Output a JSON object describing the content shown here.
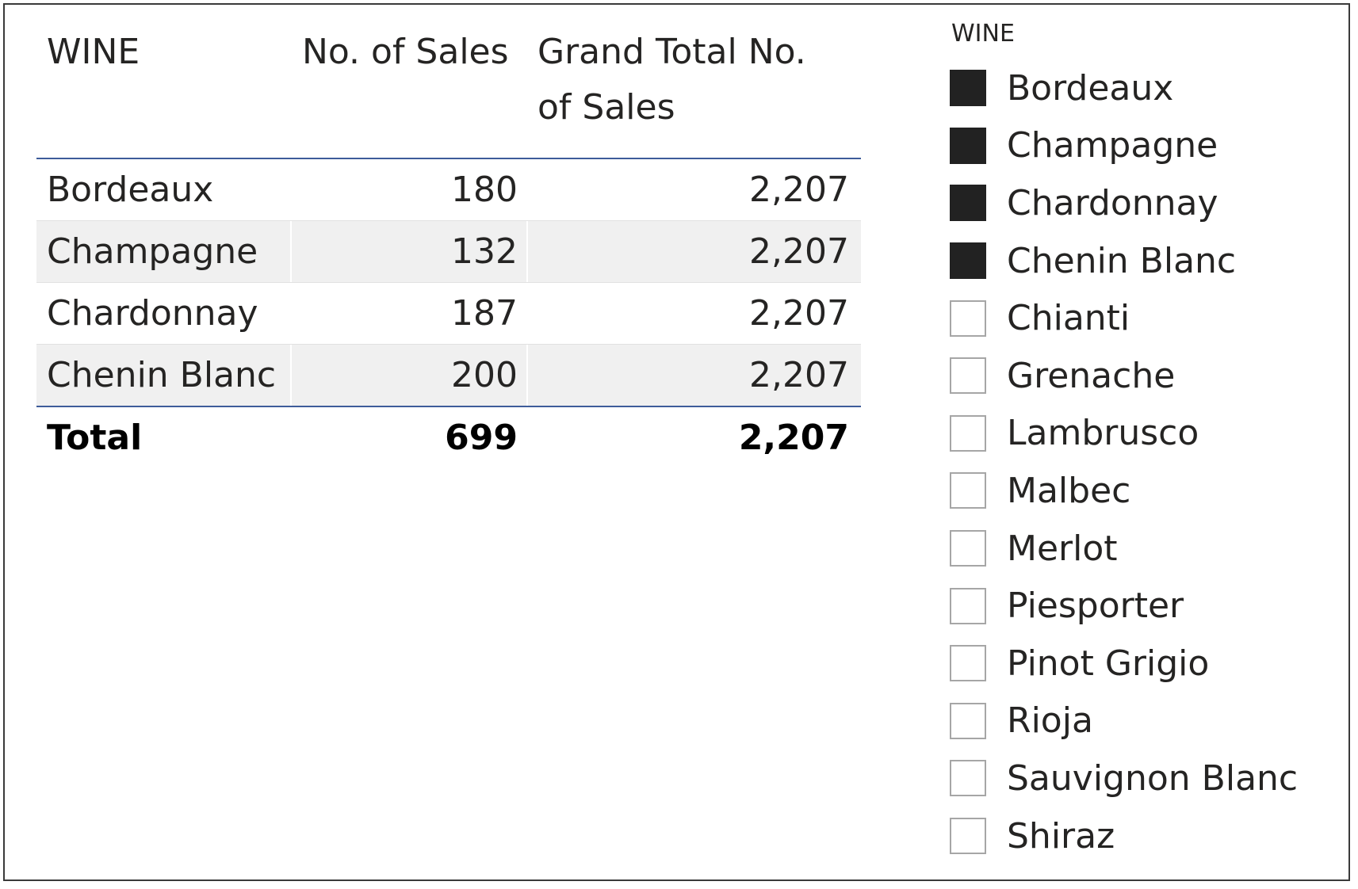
{
  "table": {
    "headers": {
      "wine": "WINE",
      "sales": "No. of Sales",
      "grand_line1": "Grand Total No.",
      "grand_line2": "of Sales"
    },
    "rows": [
      {
        "wine": "Bordeaux",
        "sales": "180",
        "grand": "2,207"
      },
      {
        "wine": "Champagne",
        "sales": "132",
        "grand": "2,207"
      },
      {
        "wine": "Chardonnay",
        "sales": "187",
        "grand": "2,207"
      },
      {
        "wine": "Chenin Blanc",
        "sales": "200",
        "grand": "2,207"
      }
    ],
    "total": {
      "label": "Total",
      "sales": "699",
      "grand": "2,207"
    }
  },
  "slicer": {
    "title": "WINE",
    "items": [
      {
        "label": "Bordeaux",
        "checked": true
      },
      {
        "label": "Champagne",
        "checked": true
      },
      {
        "label": "Chardonnay",
        "checked": true
      },
      {
        "label": "Chenin Blanc",
        "checked": true
      },
      {
        "label": "Chianti",
        "checked": false
      },
      {
        "label": "Grenache",
        "checked": false
      },
      {
        "label": "Lambrusco",
        "checked": false
      },
      {
        "label": "Malbec",
        "checked": false
      },
      {
        "label": "Merlot",
        "checked": false
      },
      {
        "label": "Piesporter",
        "checked": false
      },
      {
        "label": "Pinot Grigio",
        "checked": false
      },
      {
        "label": "Rioja",
        "checked": false
      },
      {
        "label": "Sauvignon Blanc",
        "checked": false
      },
      {
        "label": "Shiraz",
        "checked": false
      }
    ]
  },
  "colors": {
    "header_rule": "#3e5c9a",
    "band_row": "#f0f0f0",
    "checked_fill": "#222222",
    "unchecked_border": "#a6a6a6"
  }
}
